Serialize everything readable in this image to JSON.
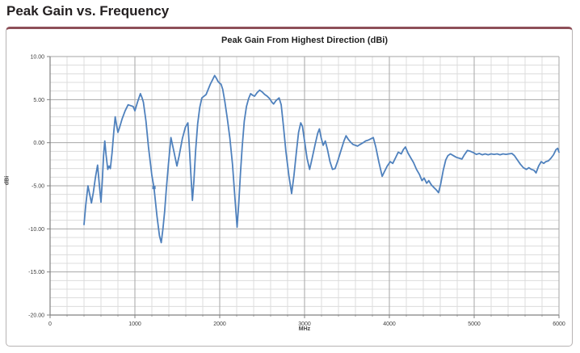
{
  "page": {
    "title": "Peak Gain vs. Frequency"
  },
  "panel": {
    "accent_color": "#8e4f58",
    "border_color": "#b7b3b3"
  },
  "chart_data": {
    "type": "line",
    "title": "Peak Gain From Highest Direction (dBi)",
    "xlabel": "MHz",
    "ylabel": "dBi",
    "xlim": [
      0,
      6000
    ],
    "ylim": [
      -20,
      10
    ],
    "x_major_ticks": [
      0,
      1000,
      2000,
      3000,
      4000,
      5000,
      6000
    ],
    "x_tick_labels": [
      "0",
      "1000",
      "2000",
      "3000",
      "4000",
      "5000",
      "6000"
    ],
    "x_minor_step": 200,
    "y_major_ticks": [
      10,
      5,
      0,
      -5,
      -10,
      -15,
      -20
    ],
    "y_tick_labels": [
      "10.00",
      "5.00",
      "0.00",
      "-5.00",
      "-10.00",
      "-15.00",
      "-20.00"
    ],
    "y_minor_step": 1,
    "grid": true,
    "legend": "none",
    "line_color": "#4F81BD",
    "minor_grid_color": "#dcdcdc",
    "major_grid_color": "#a6a6a6",
    "axis_color": "#808080",
    "tick_text_color": "#3f3f3f",
    "marker_point": [
      1225,
      -5.2
    ],
    "series": [
      {
        "name": "Peak Gain",
        "points": [
          [
            400,
            -9.5
          ],
          [
            420,
            -7.3
          ],
          [
            447,
            -5.0
          ],
          [
            465,
            -5.9
          ],
          [
            488,
            -7.0
          ],
          [
            510,
            -5.8
          ],
          [
            535,
            -4.0
          ],
          [
            560,
            -2.6
          ],
          [
            580,
            -4.8
          ],
          [
            600,
            -6.9
          ],
          [
            615,
            -4.5
          ],
          [
            630,
            -1.5
          ],
          [
            645,
            0.2
          ],
          [
            660,
            -1.4
          ],
          [
            680,
            -3.1
          ],
          [
            695,
            -2.7
          ],
          [
            710,
            -3.0
          ],
          [
            730,
            -1.2
          ],
          [
            750,
            1.2
          ],
          [
            768,
            3.0
          ],
          [
            785,
            2.0
          ],
          [
            800,
            1.2
          ],
          [
            820,
            1.8
          ],
          [
            850,
            2.8
          ],
          [
            885,
            3.7
          ],
          [
            920,
            4.4
          ],
          [
            950,
            4.3
          ],
          [
            980,
            4.2
          ],
          [
            1000,
            3.7
          ],
          [
            1030,
            4.7
          ],
          [
            1065,
            5.7
          ],
          [
            1085,
            5.2
          ],
          [
            1100,
            4.7
          ],
          [
            1130,
            2.5
          ],
          [
            1160,
            -0.5
          ],
          [
            1200,
            -3.8
          ],
          [
            1225,
            -5.2
          ],
          [
            1260,
            -8.5
          ],
          [
            1290,
            -10.8
          ],
          [
            1310,
            -11.6
          ],
          [
            1330,
            -10.0
          ],
          [
            1350,
            -8.0
          ],
          [
            1370,
            -5.5
          ],
          [
            1395,
            -2.5
          ],
          [
            1425,
            0.6
          ],
          [
            1455,
            -0.8
          ],
          [
            1495,
            -2.7
          ],
          [
            1520,
            -1.6
          ],
          [
            1560,
            0.5
          ],
          [
            1595,
            1.8
          ],
          [
            1625,
            2.3
          ],
          [
            1645,
            -1.0
          ],
          [
            1665,
            -4.5
          ],
          [
            1678,
            -6.7
          ],
          [
            1695,
            -4.5
          ],
          [
            1715,
            -1.0
          ],
          [
            1740,
            2.2
          ],
          [
            1765,
            4.1
          ],
          [
            1790,
            5.2
          ],
          [
            1815,
            5.4
          ],
          [
            1840,
            5.6
          ],
          [
            1865,
            6.2
          ],
          [
            1890,
            6.8
          ],
          [
            1915,
            7.3
          ],
          [
            1940,
            7.8
          ],
          [
            1960,
            7.5
          ],
          [
            1980,
            7.1
          ],
          [
            2000,
            6.9
          ],
          [
            2015,
            6.8
          ],
          [
            2035,
            6.2
          ],
          [
            2060,
            4.8
          ],
          [
            2090,
            2.8
          ],
          [
            2120,
            0.5
          ],
          [
            2150,
            -2.5
          ],
          [
            2180,
            -6.5
          ],
          [
            2205,
            -9.8
          ],
          [
            2225,
            -7.0
          ],
          [
            2245,
            -3.5
          ],
          [
            2265,
            -0.5
          ],
          [
            2290,
            2.5
          ],
          [
            2315,
            4.2
          ],
          [
            2340,
            5.1
          ],
          [
            2365,
            5.7
          ],
          [
            2390,
            5.5
          ],
          [
            2410,
            5.4
          ],
          [
            2440,
            5.8
          ],
          [
            2470,
            6.1
          ],
          [
            2500,
            5.9
          ],
          [
            2530,
            5.6
          ],
          [
            2560,
            5.4
          ],
          [
            2590,
            5.1
          ],
          [
            2615,
            4.7
          ],
          [
            2635,
            4.5
          ],
          [
            2665,
            4.9
          ],
          [
            2700,
            5.2
          ],
          [
            2725,
            4.4
          ],
          [
            2750,
            2.0
          ],
          [
            2780,
            -1.0
          ],
          [
            2815,
            -3.8
          ],
          [
            2848,
            -5.9
          ],
          [
            2875,
            -3.8
          ],
          [
            2905,
            -1.0
          ],
          [
            2930,
            1.2
          ],
          [
            2955,
            2.3
          ],
          [
            2975,
            1.9
          ],
          [
            3000,
            0.2
          ],
          [
            3030,
            -1.8
          ],
          [
            3060,
            -3.1
          ],
          [
            3090,
            -1.8
          ],
          [
            3125,
            -0.2
          ],
          [
            3155,
            1.1
          ],
          [
            3175,
            1.6
          ],
          [
            3195,
            0.6
          ],
          [
            3220,
            -0.3
          ],
          [
            3245,
            0.2
          ],
          [
            3270,
            -0.8
          ],
          [
            3300,
            -2.2
          ],
          [
            3330,
            -3.1
          ],
          [
            3360,
            -3.0
          ],
          [
            3395,
            -2.0
          ],
          [
            3430,
            -0.9
          ],
          [
            3465,
            0.2
          ],
          [
            3490,
            0.8
          ],
          [
            3515,
            0.4
          ],
          [
            3540,
            0.1
          ],
          [
            3570,
            -0.2
          ],
          [
            3600,
            -0.3
          ],
          [
            3625,
            -0.4
          ],
          [
            3655,
            -0.2
          ],
          [
            3690,
            0.0
          ],
          [
            3720,
            0.2
          ],
          [
            3750,
            0.3
          ],
          [
            3780,
            0.45
          ],
          [
            3810,
            0.6
          ],
          [
            3840,
            -0.5
          ],
          [
            3875,
            -2.2
          ],
          [
            3915,
            -3.9
          ],
          [
            3945,
            -3.3
          ],
          [
            3975,
            -2.7
          ],
          [
            4010,
            -2.2
          ],
          [
            4040,
            -2.4
          ],
          [
            4070,
            -1.8
          ],
          [
            4105,
            -1.1
          ],
          [
            4140,
            -1.3
          ],
          [
            4165,
            -0.8
          ],
          [
            4190,
            -0.5
          ],
          [
            4220,
            -1.2
          ],
          [
            4255,
            -1.8
          ],
          [
            4285,
            -2.3
          ],
          [
            4320,
            -3.1
          ],
          [
            4355,
            -3.7
          ],
          [
            4385,
            -4.4
          ],
          [
            4410,
            -4.1
          ],
          [
            4440,
            -4.7
          ],
          [
            4465,
            -4.4
          ],
          [
            4495,
            -4.9
          ],
          [
            4525,
            -5.2
          ],
          [
            4555,
            -5.5
          ],
          [
            4580,
            -5.8
          ],
          [
            4605,
            -4.8
          ],
          [
            4635,
            -3.2
          ],
          [
            4665,
            -2.0
          ],
          [
            4690,
            -1.5
          ],
          [
            4720,
            -1.3
          ],
          [
            4755,
            -1.5
          ],
          [
            4790,
            -1.7
          ],
          [
            4825,
            -1.8
          ],
          [
            4855,
            -1.9
          ],
          [
            4885,
            -1.4
          ],
          [
            4920,
            -0.9
          ],
          [
            4955,
            -1.0
          ],
          [
            4990,
            -1.15
          ],
          [
            5025,
            -1.35
          ],
          [
            5060,
            -1.25
          ],
          [
            5095,
            -1.4
          ],
          [
            5130,
            -1.3
          ],
          [
            5165,
            -1.4
          ],
          [
            5200,
            -1.3
          ],
          [
            5235,
            -1.35
          ],
          [
            5270,
            -1.3
          ],
          [
            5305,
            -1.4
          ],
          [
            5340,
            -1.3
          ],
          [
            5375,
            -1.35
          ],
          [
            5410,
            -1.3
          ],
          [
            5445,
            -1.25
          ],
          [
            5475,
            -1.5
          ],
          [
            5510,
            -2.0
          ],
          [
            5545,
            -2.5
          ],
          [
            5580,
            -2.9
          ],
          [
            5615,
            -3.1
          ],
          [
            5645,
            -2.9
          ],
          [
            5675,
            -3.1
          ],
          [
            5705,
            -3.2
          ],
          [
            5730,
            -3.5
          ],
          [
            5760,
            -2.7
          ],
          [
            5790,
            -2.2
          ],
          [
            5820,
            -2.4
          ],
          [
            5845,
            -2.2
          ],
          [
            5875,
            -2.1
          ],
          [
            5905,
            -1.8
          ],
          [
            5935,
            -1.4
          ],
          [
            5965,
            -0.8
          ],
          [
            5985,
            -0.65
          ],
          [
            6000,
            -1.1
          ]
        ]
      }
    ]
  }
}
